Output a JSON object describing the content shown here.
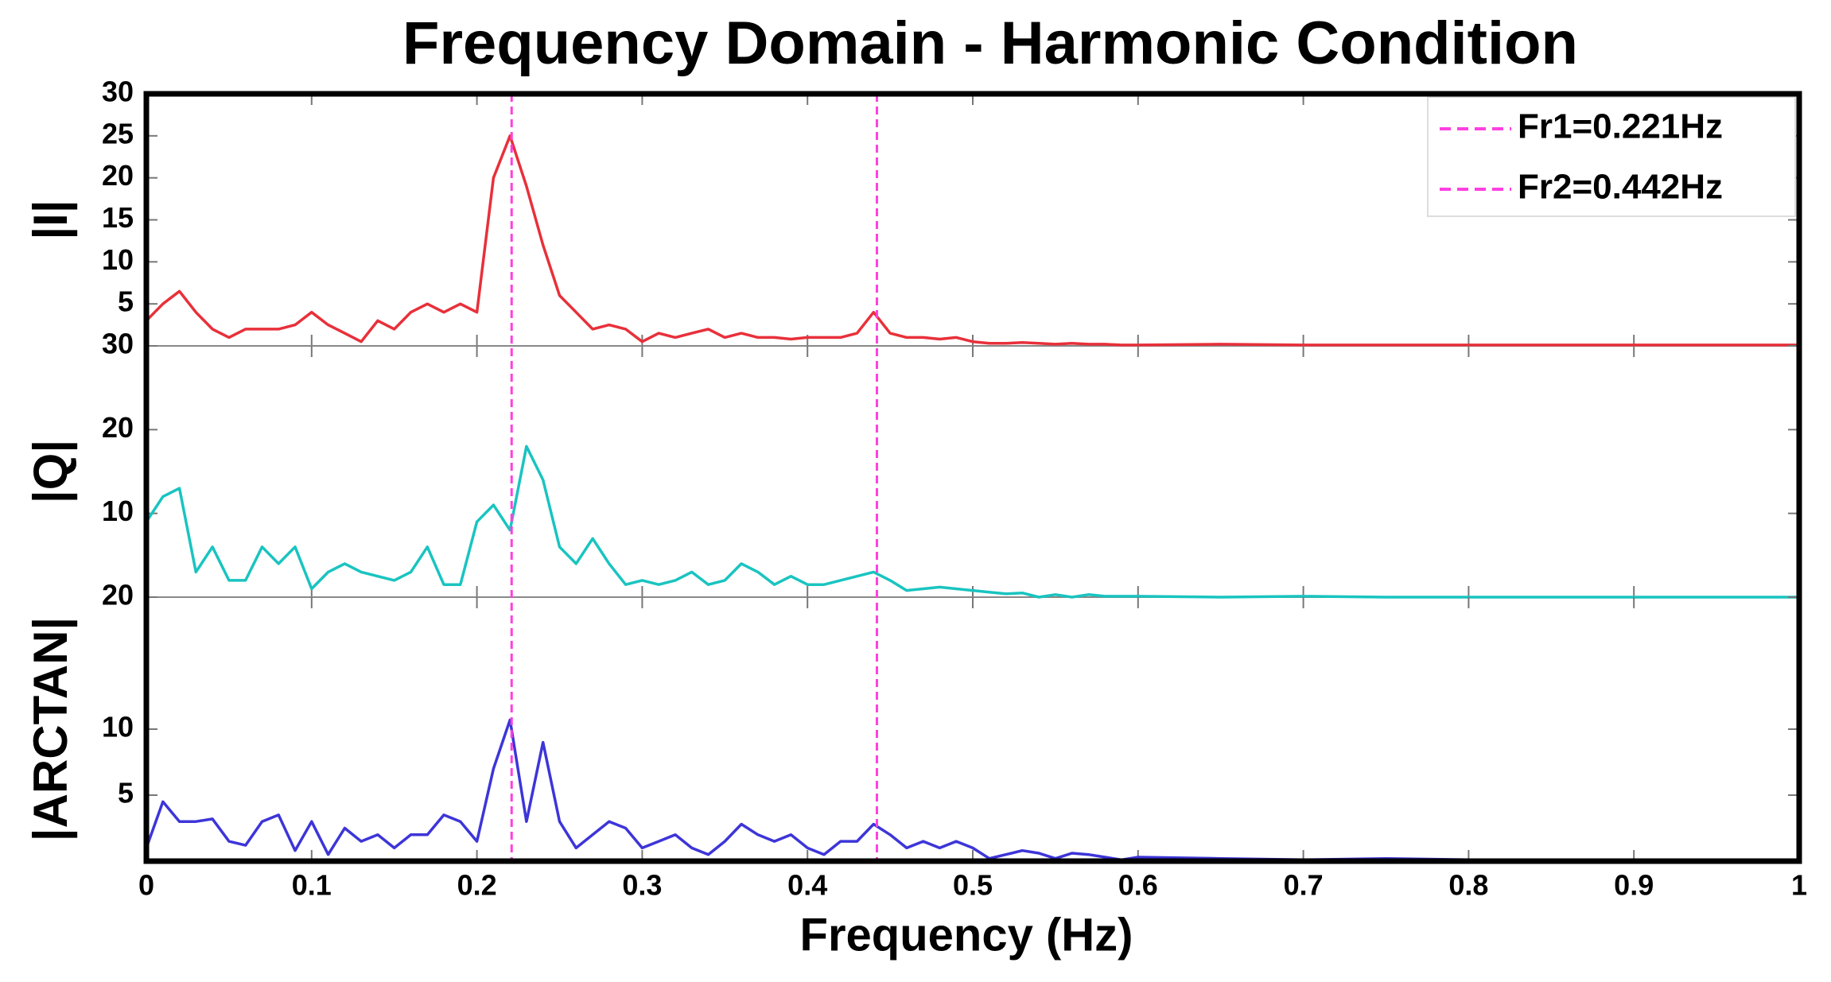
{
  "chart_data": [
    {
      "type": "line",
      "title": "Frequency Domain - Harmonic Condition",
      "ylabel": "|I|",
      "xlim": [
        0,
        1
      ],
      "ylim": [
        0,
        30
      ],
      "yticks": [
        5,
        10,
        15,
        20,
        25,
        30
      ],
      "color": "#e8303a",
      "x": [
        0,
        0.01,
        0.02,
        0.03,
        0.04,
        0.05,
        0.06,
        0.07,
        0.08,
        0.09,
        0.1,
        0.11,
        0.12,
        0.13,
        0.14,
        0.15,
        0.16,
        0.17,
        0.18,
        0.19,
        0.2,
        0.21,
        0.22,
        0.23,
        0.24,
        0.25,
        0.26,
        0.27,
        0.28,
        0.29,
        0.3,
        0.31,
        0.32,
        0.33,
        0.34,
        0.35,
        0.36,
        0.37,
        0.38,
        0.39,
        0.4,
        0.41,
        0.42,
        0.43,
        0.44,
        0.45,
        0.46,
        0.47,
        0.48,
        0.49,
        0.5,
        0.51,
        0.52,
        0.53,
        0.54,
        0.55,
        0.56,
        0.57,
        0.58,
        0.59,
        0.6,
        0.65,
        0.7,
        0.75,
        0.8,
        0.85,
        0.9,
        0.95,
        1
      ],
      "values": [
        3,
        5,
        6.5,
        4,
        2,
        1,
        2,
        2,
        2,
        2.5,
        4,
        2.5,
        1.5,
        0.5,
        3,
        2,
        4,
        5,
        4,
        5,
        4,
        20,
        25,
        19,
        12,
        6,
        4,
        2,
        2.5,
        2,
        0.5,
        1.5,
        1,
        1.5,
        2,
        1,
        1.5,
        1,
        1,
        0.8,
        1,
        1,
        1,
        1.5,
        4,
        1.5,
        1,
        1,
        0.8,
        1,
        0.5,
        0.3,
        0.3,
        0.4,
        0.3,
        0.2,
        0.3,
        0.2,
        0.2,
        0.1,
        0.1,
        0.2,
        0.1,
        0.1,
        0.1,
        0.1,
        0.1,
        0.1,
        0.1
      ],
      "vlines": [
        {
          "name": "Fr1=0.221Hz",
          "x": 0.221,
          "color": "#ff40e0"
        },
        {
          "name": "Fr2=0.442Hz",
          "x": 0.442,
          "color": "#ff40e0"
        }
      ]
    },
    {
      "type": "line",
      "ylabel": "|Q|",
      "xlim": [
        0,
        1
      ],
      "ylim": [
        0,
        30
      ],
      "yticks": [
        10,
        20,
        30
      ],
      "color": "#19c4c0",
      "x": [
        0,
        0.01,
        0.02,
        0.03,
        0.04,
        0.05,
        0.06,
        0.07,
        0.08,
        0.09,
        0.1,
        0.11,
        0.12,
        0.13,
        0.14,
        0.15,
        0.16,
        0.17,
        0.18,
        0.19,
        0.2,
        0.21,
        0.22,
        0.23,
        0.24,
        0.25,
        0.26,
        0.27,
        0.28,
        0.29,
        0.3,
        0.31,
        0.32,
        0.33,
        0.34,
        0.35,
        0.36,
        0.37,
        0.38,
        0.39,
        0.4,
        0.41,
        0.42,
        0.43,
        0.44,
        0.45,
        0.46,
        0.47,
        0.48,
        0.49,
        0.5,
        0.51,
        0.52,
        0.53,
        0.54,
        0.55,
        0.56,
        0.57,
        0.58,
        0.59,
        0.6,
        0.65,
        0.7,
        0.75,
        0.8,
        0.85,
        0.9,
        0.95,
        1
      ],
      "values": [
        9,
        12,
        13,
        3,
        6,
        2,
        2,
        6,
        4,
        6,
        1,
        3,
        4,
        3,
        2.5,
        2,
        3,
        6,
        1.5,
        1.5,
        9,
        11,
        8,
        18,
        14,
        6,
        4,
        7,
        4,
        1.5,
        2,
        1.5,
        2,
        3,
        1.5,
        2,
        4,
        3,
        1.5,
        2.5,
        1.5,
        1.5,
        2,
        2.5,
        3,
        2,
        0.8,
        1,
        1.2,
        1,
        0.8,
        0.6,
        0.4,
        0.5,
        0,
        0.3,
        0,
        0.3,
        0.1,
        0.1,
        0.1,
        0,
        0.1,
        0,
        0,
        0,
        0,
        0,
        0
      ]
    },
    {
      "type": "line",
      "ylabel": "|ARCTAN|",
      "xlabel": "Frequency (Hz)",
      "xlim": [
        0,
        1
      ],
      "ylim": [
        0,
        20
      ],
      "yticks": [
        5,
        10,
        20
      ],
      "color": "#3d35d8",
      "xticks": [
        0,
        0.1,
        0.2,
        0.3,
        0.4,
        0.5,
        0.6,
        0.7,
        0.8,
        0.9,
        1
      ],
      "x": [
        0,
        0.01,
        0.02,
        0.03,
        0.04,
        0.05,
        0.06,
        0.07,
        0.08,
        0.09,
        0.1,
        0.11,
        0.12,
        0.13,
        0.14,
        0.15,
        0.16,
        0.17,
        0.18,
        0.19,
        0.2,
        0.21,
        0.22,
        0.23,
        0.24,
        0.25,
        0.26,
        0.27,
        0.28,
        0.29,
        0.3,
        0.31,
        0.32,
        0.33,
        0.34,
        0.35,
        0.36,
        0.37,
        0.38,
        0.39,
        0.4,
        0.41,
        0.42,
        0.43,
        0.44,
        0.45,
        0.46,
        0.47,
        0.48,
        0.49,
        0.5,
        0.51,
        0.52,
        0.53,
        0.54,
        0.55,
        0.56,
        0.57,
        0.58,
        0.59,
        0.6,
        0.65,
        0.7,
        0.75,
        0.8,
        0.85,
        0.9,
        0.95,
        1
      ],
      "values": [
        1,
        4.5,
        3,
        3,
        3.2,
        1.5,
        1.2,
        3,
        3.5,
        0.8,
        3,
        0.5,
        2.5,
        1.5,
        2,
        1,
        2,
        2,
        3.5,
        3,
        1.5,
        7,
        10.7,
        3,
        9,
        3,
        1,
        2,
        3,
        2.5,
        1,
        1.5,
        2,
        1,
        0.5,
        1.5,
        2.8,
        2,
        1.5,
        2,
        1,
        0.5,
        1.5,
        1.5,
        2.8,
        2,
        1,
        1.5,
        1,
        1.5,
        1,
        0.2,
        0.5,
        0.8,
        0.6,
        0.2,
        0.6,
        0.5,
        0.3,
        0.1,
        0.3,
        0.2,
        0.1,
        0.2,
        0.1,
        0.1,
        0.1,
        0.1,
        0.1
      ]
    }
  ]
}
